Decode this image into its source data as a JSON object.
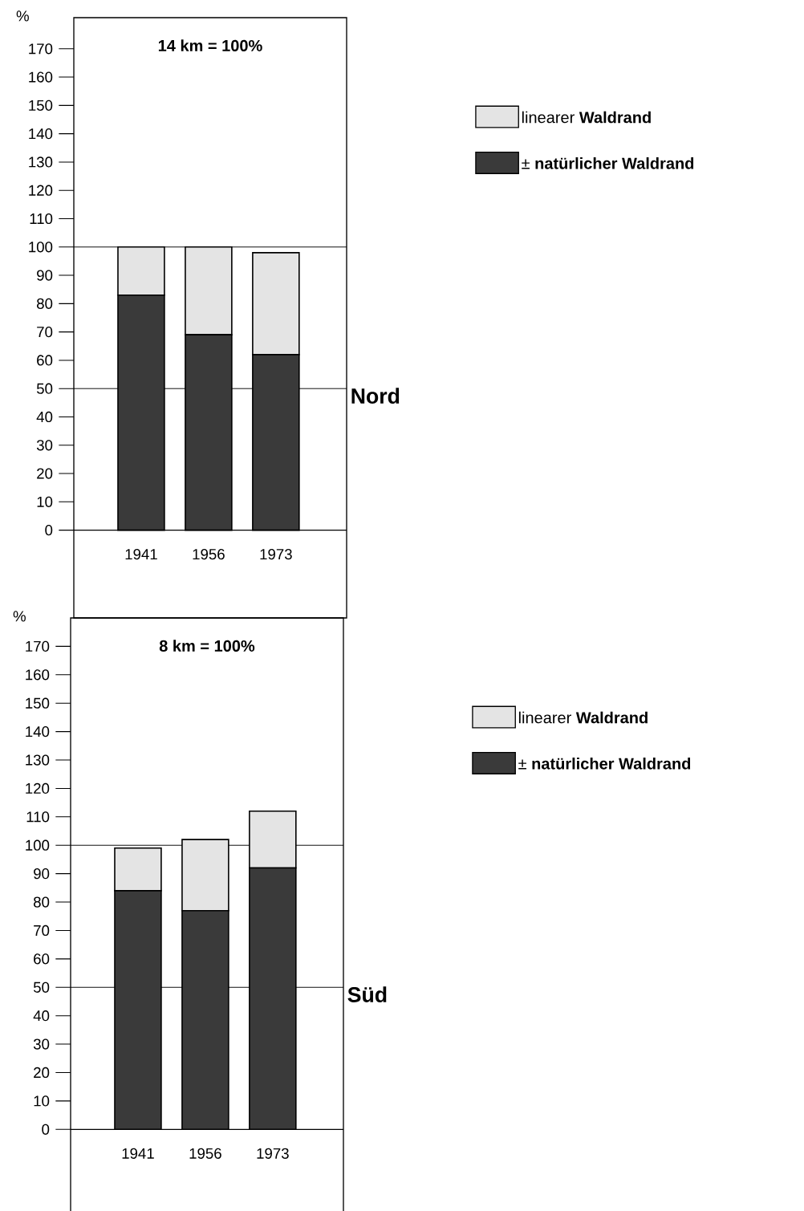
{
  "chart_data": [
    {
      "type": "bar",
      "title": "14 km = 100%",
      "ylabel": "%",
      "categories": [
        "1941",
        "1956",
        "1973"
      ],
      "stacked": true,
      "series": [
        {
          "name": "± **natürlicher Waldrand**",
          "color": "#3a3a3a",
          "values": [
            83,
            69,
            62
          ]
        },
        {
          "name": "linearer **Waldrand**",
          "color": "#e4e4e4",
          "values": [
            17,
            31,
            36
          ]
        }
      ],
      "ylim": [
        -31,
        181
      ],
      "yticks": [
        0,
        10,
        20,
        30,
        40,
        50,
        60,
        70,
        80,
        90,
        100,
        110,
        120,
        130,
        140,
        150,
        160,
        170
      ],
      "ref_lines": [
        {
          "axis": "y",
          "value": 50
        },
        {
          "axis": "y",
          "value": 100
        }
      ],
      "annotations": [
        "**Nord**"
      ],
      "legend": "right"
    },
    {
      "type": "bar",
      "title": "8 km = 100%",
      "ylabel": "%",
      "categories": [
        "1941",
        "1956",
        "1973"
      ],
      "stacked": true,
      "series": [
        {
          "name": "± **natürlicher Waldrand**",
          "color": "#3a3a3a",
          "values": [
            84,
            77,
            92
          ]
        },
        {
          "name": "linearer **Waldrand**",
          "color": "#e4e4e4",
          "values": [
            15,
            25,
            20
          ]
        }
      ],
      "ylim": [
        -29,
        180
      ],
      "yticks": [
        0,
        10,
        20,
        30,
        40,
        50,
        60,
        70,
        80,
        90,
        100,
        110,
        120,
        130,
        140,
        150,
        160,
        170
      ],
      "ref_lines": [
        {
          "axis": "y",
          "value": 50
        },
        {
          "axis": "y",
          "value": 100
        }
      ],
      "annotations": [
        "**Süd**"
      ],
      "legend": "right"
    }
  ]
}
